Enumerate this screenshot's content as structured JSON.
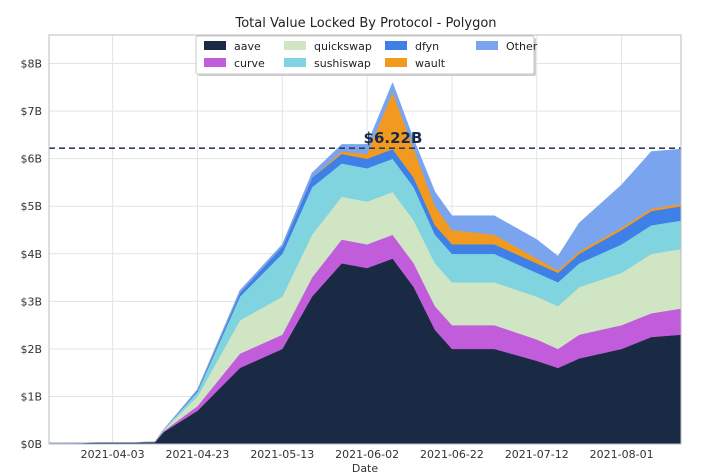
{
  "chart_data": {
    "type": "area",
    "stacked": true,
    "title": "Total Value Locked By Protocol - Polygon",
    "xlabel": "Date",
    "ylabel": "",
    "ylim": [
      0,
      8.6
    ],
    "y_unit": "B",
    "grid": true,
    "legend_position": "top-center",
    "x_start": "2021-03-19",
    "x_end": "2021-08-15",
    "x_ticks": [
      "2021-04-03",
      "2021-04-23",
      "2021-05-13",
      "2021-06-02",
      "2021-06-22",
      "2021-07-12",
      "2021-08-01"
    ],
    "y_ticks": [
      "$0B",
      "$1B",
      "$2B",
      "$3B",
      "$4B",
      "$5B",
      "$6B",
      "$7B",
      "$8B"
    ],
    "reference_line": {
      "value": 6.22,
      "label": "$6.22B"
    },
    "x": [
      "2021-03-19",
      "2021-04-03",
      "2021-04-13",
      "2021-04-15",
      "2021-04-23",
      "2021-05-03",
      "2021-05-13",
      "2021-05-20",
      "2021-05-27",
      "2021-06-02",
      "2021-06-08",
      "2021-06-13",
      "2021-06-18",
      "2021-06-22",
      "2021-07-02",
      "2021-07-12",
      "2021-07-17",
      "2021-07-22",
      "2021-08-01",
      "2021-08-08",
      "2021-08-15"
    ],
    "series": [
      {
        "name": "aave",
        "color": "#1b2a44",
        "values": [
          0.02,
          0.03,
          0.04,
          0.25,
          0.7,
          1.6,
          2.0,
          3.1,
          3.8,
          3.7,
          3.9,
          3.3,
          2.4,
          2.0,
          2.0,
          1.75,
          1.6,
          1.8,
          2.0,
          2.25,
          2.3
        ]
      },
      {
        "name": "curve",
        "color": "#c15ddb",
        "values": [
          0.0,
          0.0,
          0.0,
          0.02,
          0.1,
          0.3,
          0.3,
          0.4,
          0.5,
          0.5,
          0.5,
          0.5,
          0.5,
          0.5,
          0.5,
          0.45,
          0.4,
          0.5,
          0.5,
          0.5,
          0.55
        ]
      },
      {
        "name": "quickswap",
        "color": "#cfe5c4",
        "values": [
          0.0,
          0.0,
          0.0,
          0.02,
          0.2,
          0.7,
          0.8,
          0.9,
          0.9,
          0.9,
          0.9,
          0.9,
          0.9,
          0.9,
          0.9,
          0.9,
          0.9,
          1.0,
          1.1,
          1.25,
          1.25
        ]
      },
      {
        "name": "sushiswap",
        "color": "#7fd4e0",
        "values": [
          0.0,
          0.0,
          0.0,
          0.01,
          0.1,
          0.5,
          0.9,
          1.0,
          0.7,
          0.7,
          0.7,
          0.7,
          0.6,
          0.6,
          0.6,
          0.5,
          0.5,
          0.5,
          0.6,
          0.6,
          0.6
        ]
      },
      {
        "name": "dfyn",
        "color": "#3f7fe8",
        "values": [
          0.0,
          0.0,
          0.0,
          0.0,
          0.03,
          0.08,
          0.15,
          0.2,
          0.2,
          0.2,
          0.2,
          0.2,
          0.2,
          0.2,
          0.2,
          0.2,
          0.2,
          0.2,
          0.3,
          0.3,
          0.3
        ]
      },
      {
        "name": "wault",
        "color": "#f19a1f",
        "values": [
          0.0,
          0.0,
          0.0,
          0.0,
          0.0,
          0.0,
          0.0,
          0.0,
          0.05,
          0.1,
          1.2,
          0.6,
          0.4,
          0.3,
          0.2,
          0.1,
          0.05,
          0.05,
          0.05,
          0.05,
          0.05
        ]
      },
      {
        "name": "Other",
        "color": "#7aa5ee",
        "values": [
          0.0,
          0.0,
          0.0,
          0.0,
          0.02,
          0.05,
          0.05,
          0.1,
          0.15,
          0.2,
          0.2,
          0.2,
          0.3,
          0.3,
          0.4,
          0.4,
          0.3,
          0.6,
          0.9,
          1.2,
          1.15
        ]
      }
    ]
  }
}
